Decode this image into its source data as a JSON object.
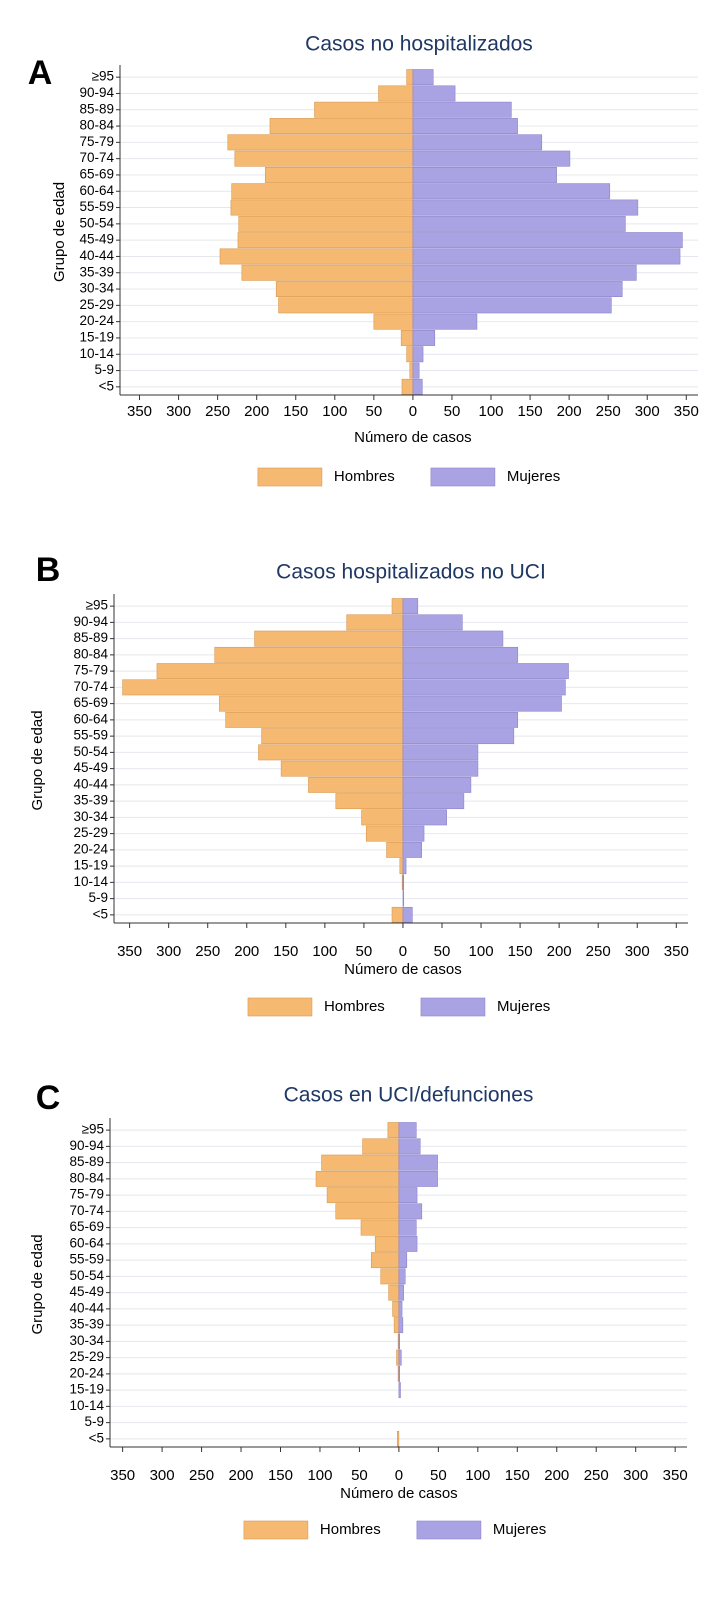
{
  "chart_data": [
    {
      "type": "pyramid",
      "panel_label": "A",
      "title": "Casos no hospitalizados",
      "xlabel": "Número de casos",
      "ylabel": "Grupo de edad",
      "grid": true,
      "legend": "bottom",
      "categories": [
        "≥95",
        "90-94",
        "85-89",
        "80-84",
        "75-79",
        "70-74",
        "65-69",
        "60-64",
        "55-59",
        "50-54",
        "45-49",
        "40-44",
        "35-39",
        "30-34",
        "25-29",
        "20-24",
        "15-19",
        "10-14",
        "5-9",
        "<5"
      ],
      "series": [
        {
          "name": "Hombres",
          "color": "#f5b971",
          "side": "left",
          "values": [
            8,
            44,
            126,
            183,
            237,
            228,
            189,
            232,
            233,
            223,
            224,
            247,
            219,
            175,
            172,
            50,
            15,
            8,
            4,
            14
          ]
        },
        {
          "name": "Mujeres",
          "color": "#aaa3e3",
          "side": "right",
          "values": [
            26,
            54,
            126,
            134,
            165,
            201,
            184,
            252,
            288,
            272,
            345,
            342,
            286,
            268,
            254,
            82,
            28,
            13,
            8,
            12
          ]
        }
      ],
      "xlim": [
        -375,
        365
      ],
      "xticks": [
        {
          "value": -350,
          "label": "350"
        },
        {
          "value": -300,
          "label": "300"
        },
        {
          "value": -250,
          "label": "250"
        },
        {
          "value": -200,
          "label": "200"
        },
        {
          "value": -150,
          "label": "150"
        },
        {
          "value": -100,
          "label": "100"
        },
        {
          "value": -50,
          "label": "50"
        },
        0,
        50,
        100,
        150,
        200,
        250,
        300,
        350
      ]
    },
    {
      "type": "pyramid",
      "panel_label": "B",
      "title": "Casos hospitalizados no UCI",
      "xlabel": "Número de casos",
      "ylabel": "Grupo de edad",
      "grid": true,
      "legend": "bottom",
      "categories": [
        "≥95",
        "90-94",
        "85-89",
        "80-84",
        "75-79",
        "70-74",
        "65-69",
        "60-64",
        "55-59",
        "50-54",
        "45-49",
        "40-44",
        "35-39",
        "30-34",
        "25-29",
        "20-24",
        "15-19",
        "10-14",
        "5-9",
        "<5"
      ],
      "series": [
        {
          "name": "Hombres",
          "color": "#f5b971",
          "side": "left",
          "values": [
            14,
            72,
            190,
            241,
            315,
            359,
            235,
            227,
            181,
            185,
            156,
            121,
            86,
            53,
            47,
            21,
            4,
            1,
            0,
            14
          ]
        },
        {
          "name": "Mujeres",
          "color": "#aaa3e3",
          "side": "right",
          "values": [
            19,
            76,
            128,
            147,
            212,
            208,
            203,
            147,
            142,
            96,
            96,
            87,
            78,
            56,
            27,
            24,
            4,
            1,
            1,
            12
          ]
        }
      ],
      "xlim": [
        -370,
        365
      ],
      "xticks": [
        {
          "value": -350,
          "label": "350"
        },
        {
          "value": -300,
          "label": "300"
        },
        {
          "value": -250,
          "label": "250"
        },
        {
          "value": -200,
          "label": "200"
        },
        {
          "value": -150,
          "label": "150"
        },
        {
          "value": -100,
          "label": "100"
        },
        {
          "value": -50,
          "label": "50"
        },
        0,
        50,
        100,
        150,
        200,
        250,
        300,
        350
      ]
    },
    {
      "type": "pyramid",
      "panel_label": "C",
      "title": "Casos en UCI/defunciones",
      "xlabel": "Número de casos",
      "ylabel": "Grupo de edad",
      "grid": true,
      "legend": "bottom",
      "categories": [
        "≥95",
        "90-94",
        "85-89",
        "80-84",
        "75-79",
        "70-74",
        "65-69",
        "60-64",
        "55-59",
        "50-54",
        "45-49",
        "40-44",
        "35-39",
        "30-34",
        "25-29",
        "20-24",
        "15-19",
        "10-14",
        "5-9",
        "<5"
      ],
      "series": [
        {
          "name": "Hombres",
          "color": "#f5b971",
          "side": "left",
          "values": [
            14,
            46,
            98,
            105,
            91,
            80,
            48,
            30,
            35,
            23,
            13,
            8,
            6,
            1,
            3,
            1,
            0,
            0,
            0,
            2
          ]
        },
        {
          "name": "Mujeres",
          "color": "#aaa3e3",
          "side": "right",
          "values": [
            22,
            27,
            49,
            49,
            23,
            29,
            22,
            23,
            10,
            8,
            6,
            4,
            5,
            1,
            3,
            1,
            2,
            0,
            0,
            0
          ]
        }
      ],
      "xlim": [
        -366,
        365
      ],
      "xticks": [
        {
          "value": -350,
          "label": "350"
        },
        {
          "value": -300,
          "label": "300"
        },
        {
          "value": -250,
          "label": "250"
        },
        {
          "value": -200,
          "label": "200"
        },
        {
          "value": -150,
          "label": "150"
        },
        {
          "value": -100,
          "label": "100"
        },
        {
          "value": -50,
          "label": "50"
        },
        0,
        50,
        100,
        150,
        200,
        250,
        300,
        350
      ]
    }
  ]
}
